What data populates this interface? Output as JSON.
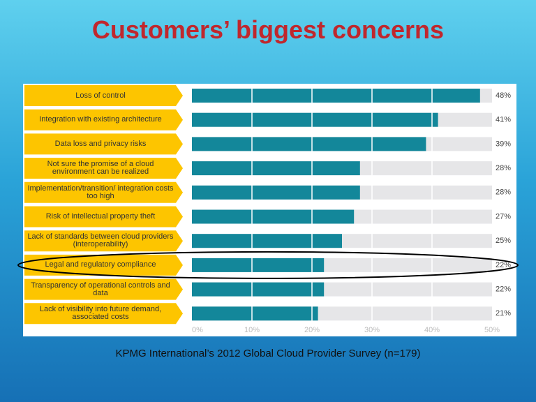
{
  "chart_data": {
    "type": "hbar",
    "title": "Customers’ biggest concerns",
    "categories": [
      "Loss of control",
      "Integration with existing architecture",
      "Data loss and privacy risks",
      "Not sure the promise of a cloud environment can be realized",
      "Implementation/transition/ integration costs too high",
      "Risk of intellectual property theft",
      "Lack of standards between cloud providers (interoperability)",
      "Legal and regulatory compliance",
      "Transparency of operational controls and data",
      "Lack of visibility into future demand, associated costs"
    ],
    "values": [
      48,
      41,
      39,
      28,
      28,
      27,
      25,
      22,
      22,
      21
    ],
    "value_labels": [
      "48%",
      "41%",
      "39%",
      "28%",
      "28%",
      "27%",
      "25%",
      "22%",
      "22%",
      "21%"
    ],
    "color": "#13879a",
    "xlim": [
      0,
      50
    ],
    "xticks": [
      {
        "value": 0,
        "label": "0%"
      },
      {
        "value": 10,
        "label": "10%"
      },
      {
        "value": 20,
        "label": "20%"
      },
      {
        "value": 30,
        "label": "30%"
      },
      {
        "value": 40,
        "label": "40%"
      },
      {
        "value": 50,
        "label": "50%"
      }
    ],
    "grid": true,
    "source": "KPMG International’s 2012 Global Cloud Provider Survey (n=179)"
  }
}
